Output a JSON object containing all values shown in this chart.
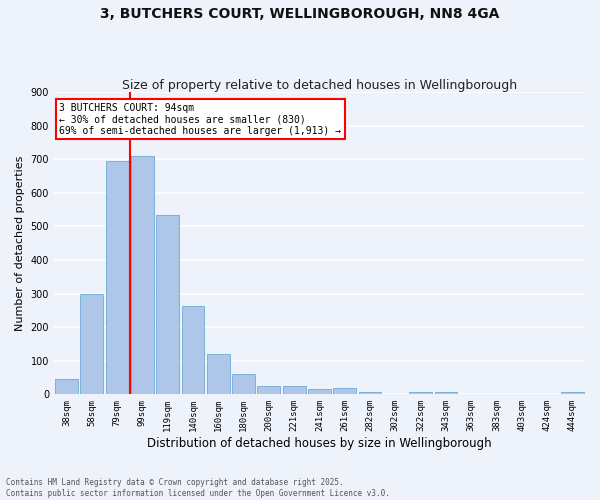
{
  "title": "3, BUTCHERS COURT, WELLINGBOROUGH, NN8 4GA",
  "subtitle": "Size of property relative to detached houses in Wellingborough",
  "xlabel": "Distribution of detached houses by size in Wellingborough",
  "ylabel": "Number of detached properties",
  "categories": [
    "38sqm",
    "58sqm",
    "79sqm",
    "99sqm",
    "119sqm",
    "140sqm",
    "160sqm",
    "180sqm",
    "200sqm",
    "221sqm",
    "241sqm",
    "261sqm",
    "282sqm",
    "302sqm",
    "322sqm",
    "343sqm",
    "363sqm",
    "383sqm",
    "403sqm",
    "424sqm",
    "444sqm"
  ],
  "values": [
    45,
    300,
    695,
    708,
    535,
    263,
    120,
    60,
    25,
    25,
    15,
    18,
    8,
    1,
    7,
    7,
    2,
    2,
    1,
    1,
    6
  ],
  "bar_color": "#aec6e8",
  "bar_edge_color": "#5a9fd4",
  "background_color": "#eef2fa",
  "grid_color": "#ffffff",
  "vline_x": 2.5,
  "vline_color": "red",
  "annotation_text": "3 BUTCHERS COURT: 94sqm\n← 30% of detached houses are smaller (830)\n69% of semi-detached houses are larger (1,913) →",
  "annotation_box_color": "red",
  "annotation_box_fill": "white",
  "ylim": [
    0,
    900
  ],
  "yticks": [
    0,
    100,
    200,
    300,
    400,
    500,
    600,
    700,
    800,
    900
  ],
  "footer": "Contains HM Land Registry data © Crown copyright and database right 2025.\nContains public sector information licensed under the Open Government Licence v3.0.",
  "title_fontsize": 10,
  "subtitle_fontsize": 9,
  "tick_fontsize": 6.5,
  "ylabel_fontsize": 8,
  "xlabel_fontsize": 8.5,
  "annotation_fontsize": 7,
  "footer_fontsize": 5.5
}
